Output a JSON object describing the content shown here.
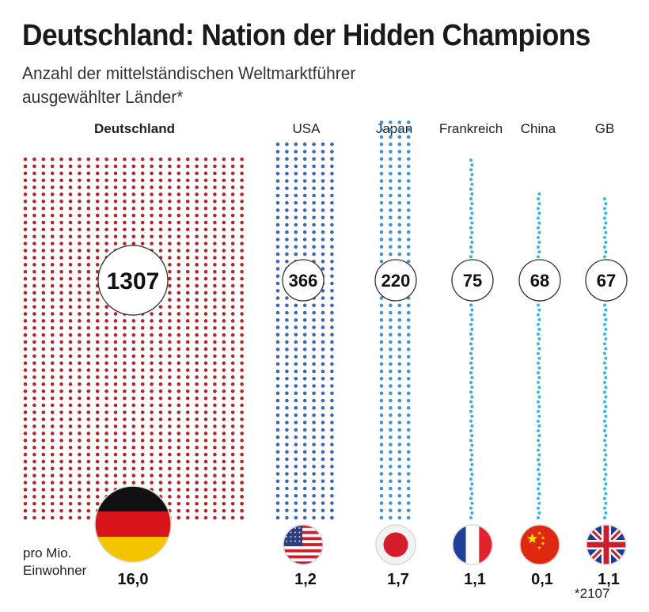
{
  "header": {
    "title": "Deutschland: Nation der Hidden Champions",
    "subtitle_line1": "Anzahl der mittelständischen Weltmarktführer",
    "subtitle_line2": "ausgewählter Länder*"
  },
  "legend": {
    "per_capita_line1": "pro Mio.",
    "per_capita_line2": "Einwohner"
  },
  "footnote": "*2107",
  "colors": {
    "deutschland": "#b3262b",
    "usa": "#3a66b8",
    "japan": "#3f95d4",
    "frankreich": "#3aa9dd",
    "china": "#36b6db",
    "gb": "#36b6db"
  },
  "chart_data": {
    "type": "bar",
    "title": "Deutschland: Nation der Hidden Champions",
    "subtitle": "Anzahl der mittelständischen Weltmarktführer ausgewählter Länder*",
    "categories": [
      "Deutschland",
      "USA",
      "Japan",
      "Frankreich",
      "China",
      "GB"
    ],
    "values": [
      1307,
      366,
      220,
      75,
      68,
      67
    ],
    "per_million_inhabitants": [
      "16,0",
      "1,2",
      "1,7",
      "1,1",
      "0,1",
      "1,1"
    ],
    "flags": [
      "germany-flag",
      "usa-flag",
      "japan-flag",
      "france-flag",
      "china-flag",
      "uk-flag"
    ],
    "highlight": "Deutschland"
  }
}
